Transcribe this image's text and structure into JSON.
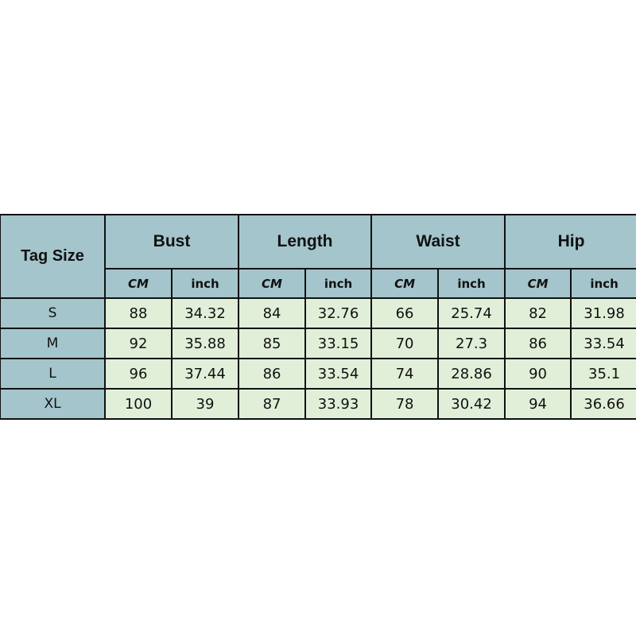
{
  "table": {
    "corner": "Tag Size",
    "groups": [
      "Bust",
      "Length",
      "Waist",
      "Hip"
    ],
    "units": [
      "CM",
      "inch"
    ],
    "rows": [
      {
        "size": "S",
        "values": [
          "88",
          "34.32",
          "84",
          "32.76",
          "66",
          "25.74",
          "82",
          "31.98"
        ]
      },
      {
        "size": "M",
        "values": [
          "92",
          "35.88",
          "85",
          "33.15",
          "70",
          "27.3",
          "86",
          "33.54"
        ]
      },
      {
        "size": "L",
        "values": [
          "96",
          "37.44",
          "86",
          "33.54",
          "74",
          "28.86",
          "90",
          "35.1"
        ]
      },
      {
        "size": "XL",
        "values": [
          "100",
          "39",
          "87",
          "33.93",
          "78",
          "30.42",
          "94",
          "36.66"
        ]
      }
    ]
  },
  "colors": {
    "header": "#a4c5cc",
    "cell": "#e1efd8",
    "border": "#111111"
  }
}
